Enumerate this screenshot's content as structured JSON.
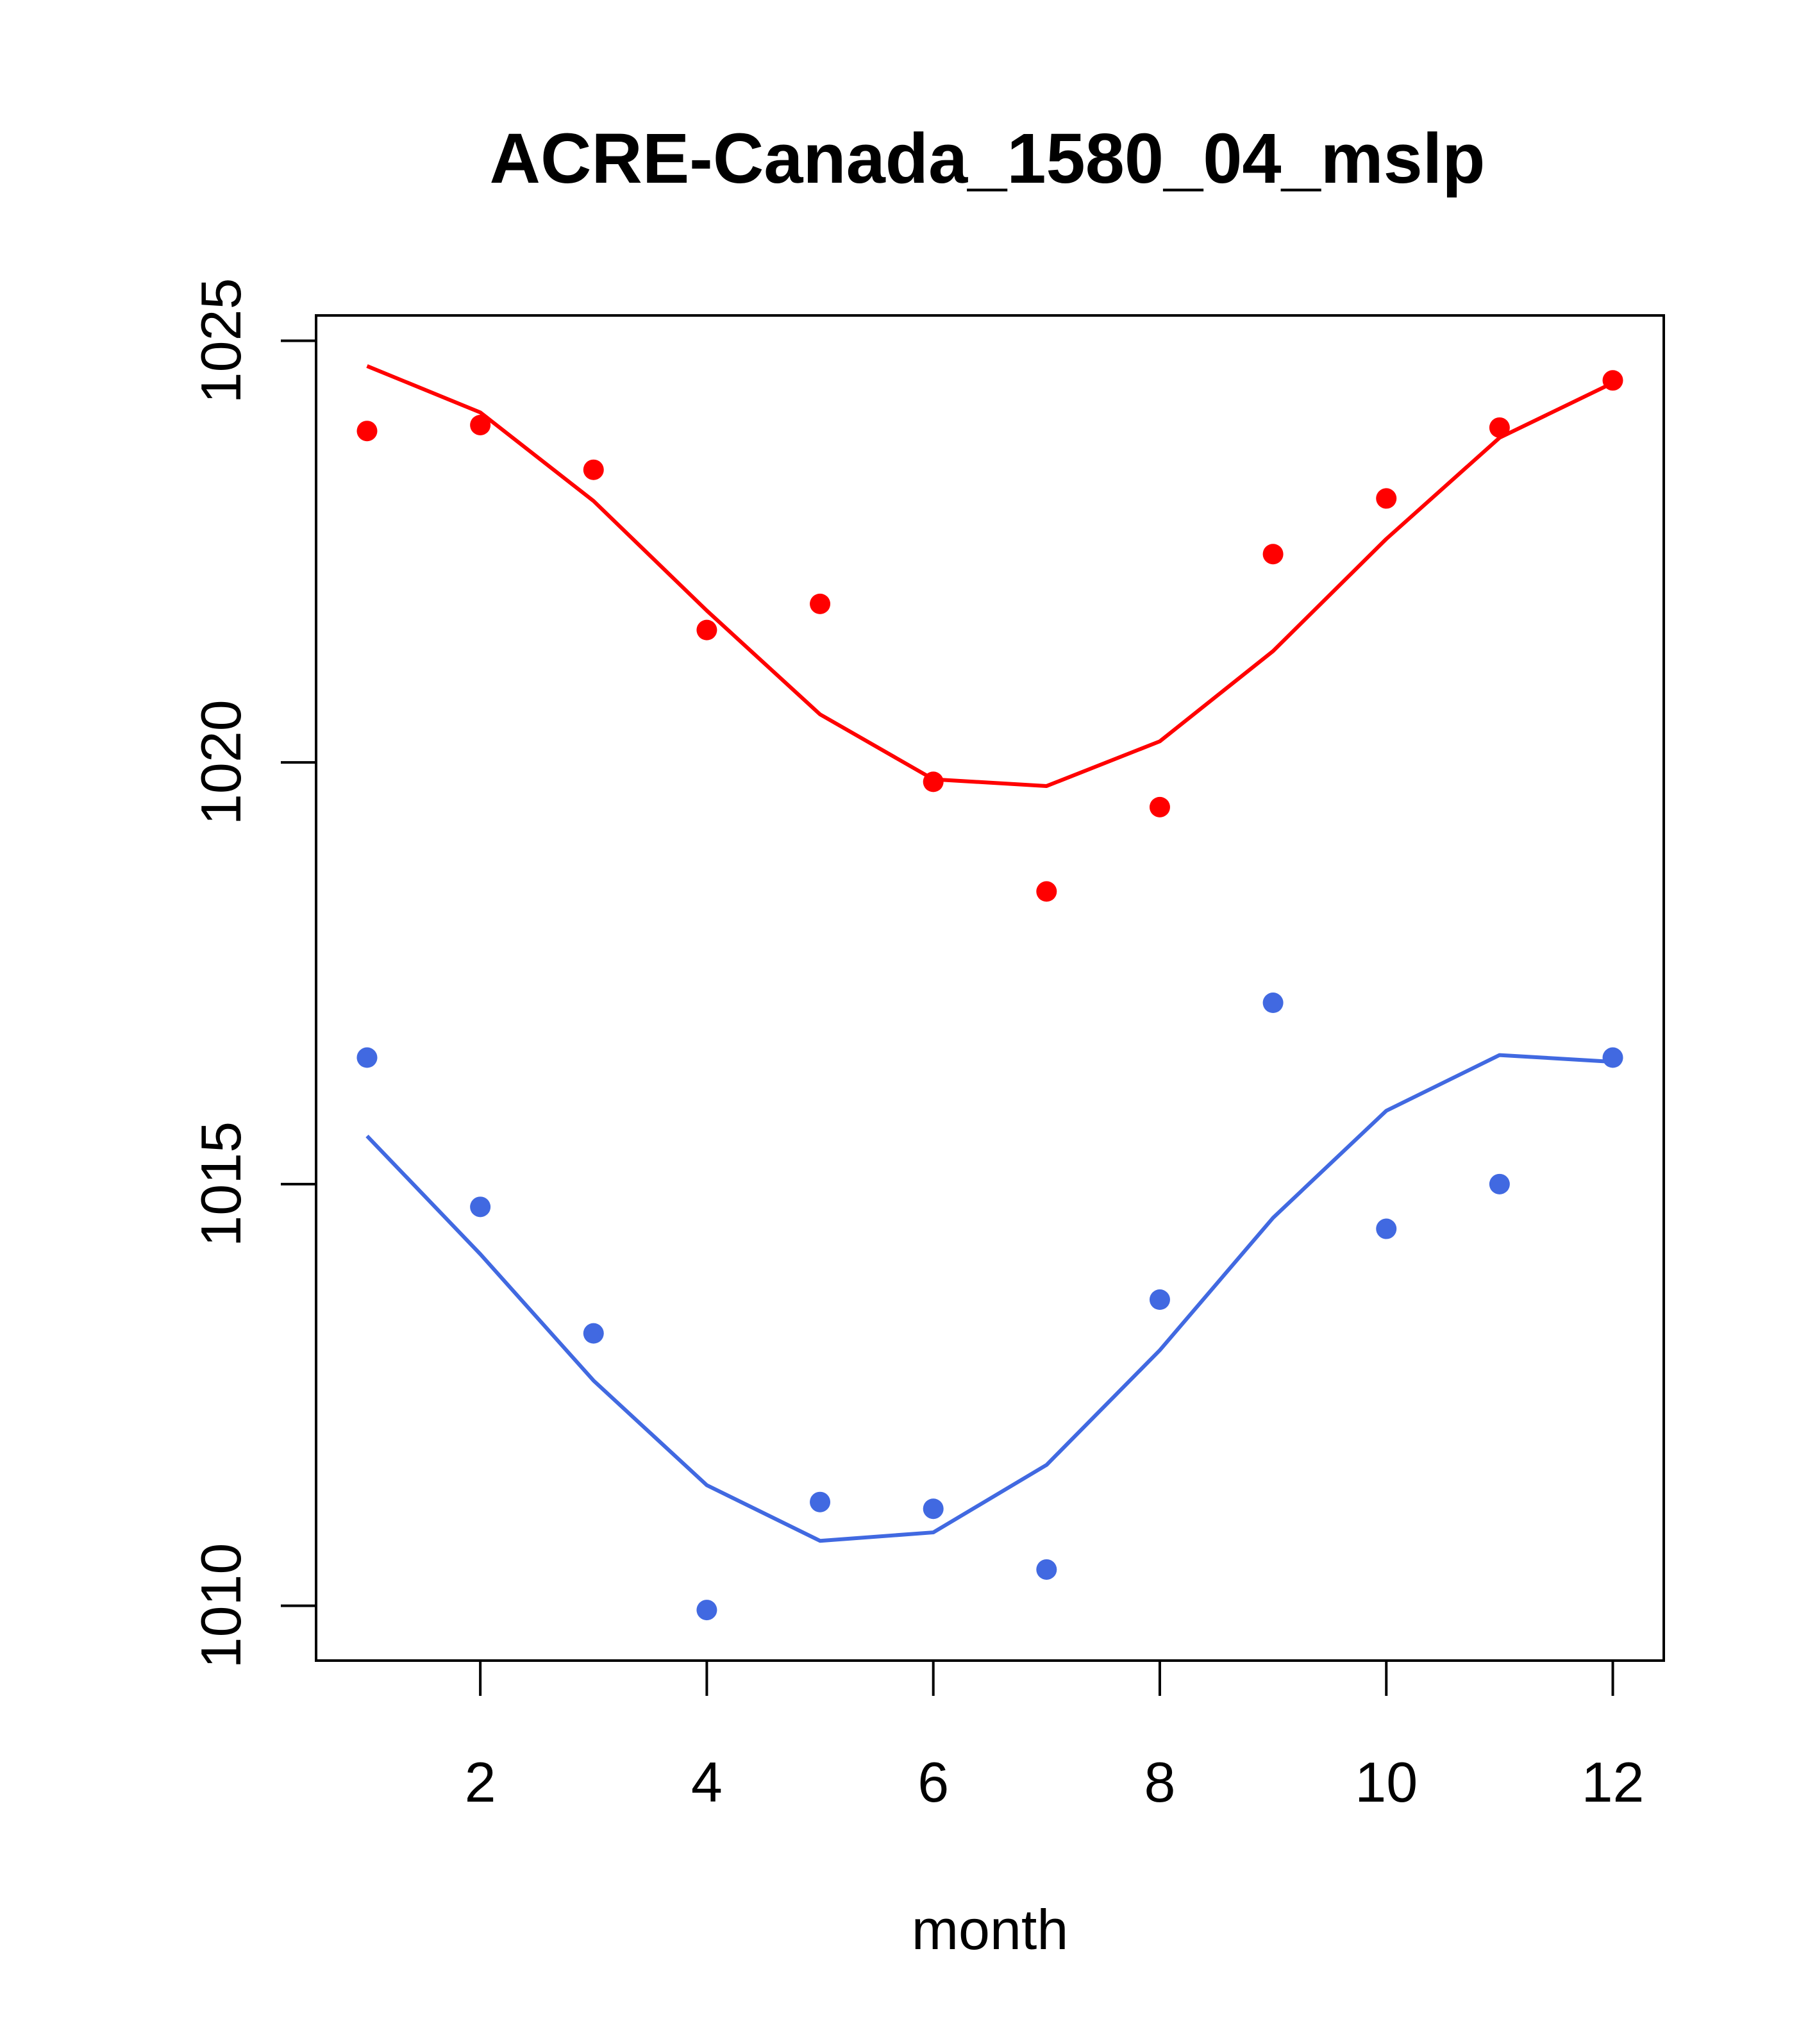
{
  "chart_data": {
    "type": "line",
    "title": "ACRE-Canada_1580_04_mslp",
    "xlabel": "month",
    "ylabel": "",
    "xlim": [
      0.55,
      12.45
    ],
    "ylim": [
      1009.35,
      1025.3
    ],
    "x_ticks": [
      2,
      4,
      6,
      8,
      10,
      12
    ],
    "x_tick_labels": [
      "2",
      "4",
      "6",
      "8",
      "10",
      "12"
    ],
    "y_ticks": [
      1010,
      1015,
      1020,
      1025
    ],
    "y_tick_labels": [
      "1010",
      "1015",
      "1020",
      "1025"
    ],
    "grid": false,
    "x": [
      1,
      2,
      3,
      4,
      5,
      6,
      7,
      8,
      9,
      10,
      11,
      12
    ],
    "series": [
      {
        "name": "red-line",
        "style": "line",
        "color": "#ff0000",
        "values": [
          1024.7,
          1024.15,
          1023.1,
          1021.8,
          1020.57,
          1019.8,
          1019.72,
          1020.25,
          1021.32,
          1022.65,
          1023.85,
          1024.5
        ]
      },
      {
        "name": "red-points",
        "style": "points",
        "color": "#ff0000",
        "values": [
          1023.93,
          1024.0,
          1023.47,
          1021.57,
          1021.88,
          1019.77,
          1018.47,
          1019.47,
          1022.47,
          1023.13,
          1023.97,
          1024.53
        ]
      },
      {
        "name": "blue-line",
        "style": "line",
        "color": "#4169e1",
        "values": [
          1015.57,
          1014.17,
          1012.67,
          1011.43,
          1010.77,
          1010.87,
          1011.67,
          1013.03,
          1014.6,
          1015.87,
          1016.53,
          1016.45
        ]
      },
      {
        "name": "blue-points",
        "style": "points",
        "color": "#4169e1",
        "values": [
          1016.5,
          1014.73,
          1013.23,
          1009.95,
          1011.23,
          1011.15,
          1010.43,
          1013.63,
          1017.15,
          1014.47,
          1015.0,
          1016.5
        ]
      }
    ]
  }
}
